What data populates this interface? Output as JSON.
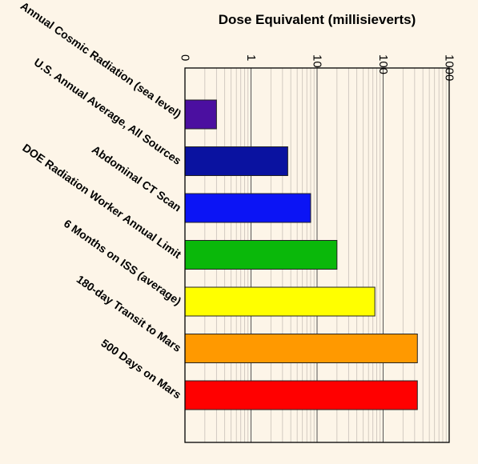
{
  "chart_data": {
    "type": "bar",
    "orientation": "horizontal",
    "title": "Dose Equivalent (millisieverts)",
    "xlabel": "Dose Equivalent (millisieverts)",
    "ylabel": "",
    "xscale": "log",
    "xlim": [
      0.1,
      1000
    ],
    "tick_labels": [
      "0",
      "1",
      "10",
      "100",
      "1000"
    ],
    "categories": [
      "Annual Cosmic Radiation (sea level)",
      "U.S. Annual Average, All Sources",
      "Abdominal CT Scan",
      "DOE Radiation Worker Annual Limit",
      "6 Months on ISS (average)",
      "180-day Transit to Mars",
      "500 Days on Mars"
    ],
    "values": [
      0.3,
      3.6,
      8,
      20,
      75,
      330,
      330
    ],
    "colors": [
      "#4b0fa0",
      "#0a12a0",
      "#0b14f5",
      "#0ab80a",
      "#ffff00",
      "#ff9900",
      "#ff0000"
    ],
    "grid": true,
    "legend": "none"
  }
}
